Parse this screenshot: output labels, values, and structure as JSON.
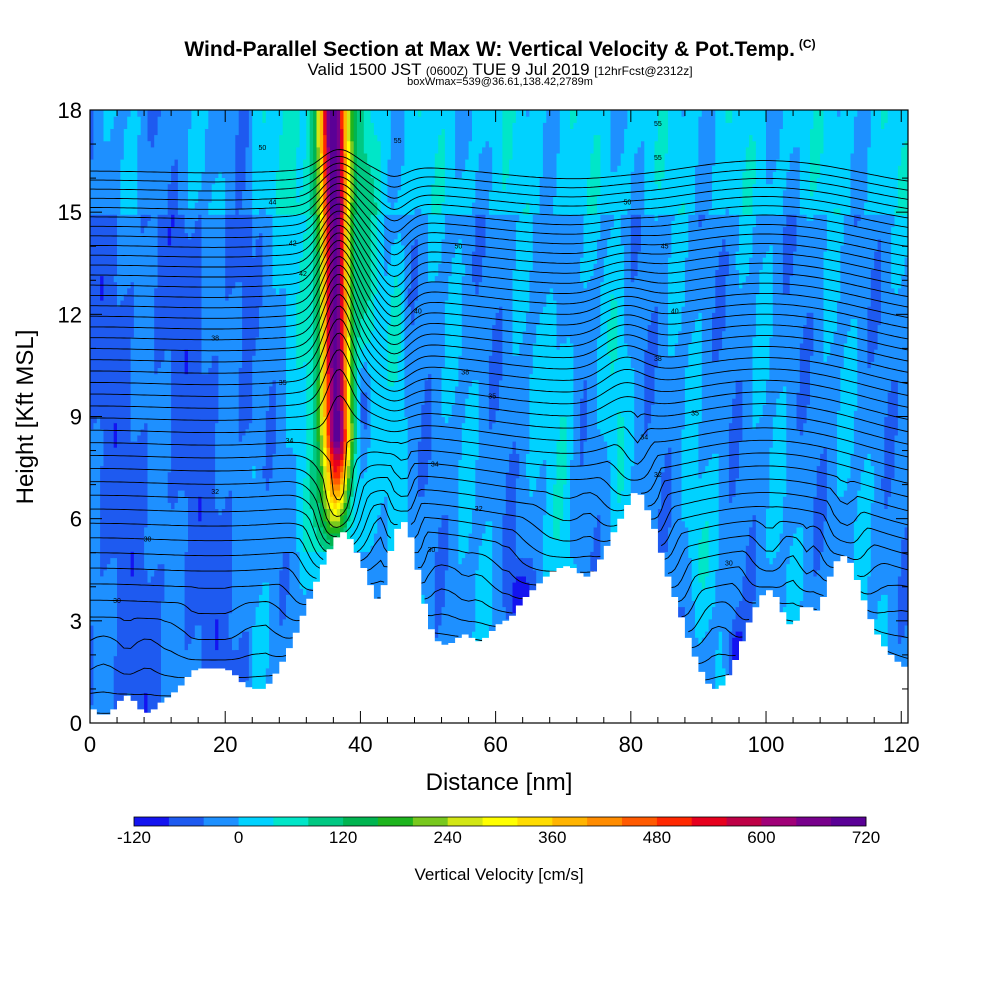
{
  "header": {
    "title": "Wind-Parallel Section at Max W: Vertical Velocity & Pot.Temp.",
    "copyright": "(C)",
    "valid_main": "Valid 1500 JST",
    "valid_utc": "(0600Z)",
    "valid_date": "TUE 9 Jul 2019",
    "forecast": "[12hrFcst@2312z]",
    "box_info": "boxWmax=539@36.61,138.42,2789m"
  },
  "chart_data": {
    "type": "heatmap",
    "xlabel": "Distance [nm]",
    "ylabel": "Height [Kft MSL]",
    "xlim": [
      0,
      121
    ],
    "ylim": [
      0,
      18
    ],
    "x_ticks": [
      0,
      20,
      40,
      60,
      80,
      100,
      120
    ],
    "y_ticks": [
      0,
      3,
      6,
      9,
      12,
      15,
      18
    ],
    "colorbar": {
      "label": "Vertical Velocity [cm/s]",
      "min": -120,
      "max": 720,
      "step": 40,
      "tick_labels": [
        "-120",
        "0",
        "120",
        "240",
        "360",
        "480",
        "600",
        "720"
      ],
      "colors": [
        "#1414f0",
        "#1e5af0",
        "#1e90ff",
        "#00d2ff",
        "#00e6c8",
        "#00c882",
        "#00b450",
        "#1eb41e",
        "#78c81e",
        "#d2e614",
        "#ffff00",
        "#ffdc00",
        "#ffb400",
        "#ff8c00",
        "#ff5a00",
        "#ff2800",
        "#e6001e",
        "#be0046",
        "#a00078",
        "#78008c",
        "#5a0096"
      ]
    },
    "terrain": [
      [
        0,
        0.5
      ],
      [
        1,
        0.3
      ],
      [
        2,
        0.2
      ],
      [
        3,
        0.3
      ],
      [
        4,
        0.5
      ],
      [
        5,
        0.8
      ],
      [
        6,
        0.8
      ],
      [
        7,
        0.5
      ],
      [
        8,
        0.3
      ],
      [
        9,
        0.3
      ],
      [
        10,
        0.5
      ],
      [
        11,
        0.7
      ],
      [
        12,
        0.8
      ],
      [
        13,
        1.0
      ],
      [
        14,
        1.2
      ],
      [
        15,
        1.5
      ],
      [
        16,
        1.6
      ],
      [
        17,
        1.6
      ],
      [
        18,
        1.6
      ],
      [
        19,
        1.6
      ],
      [
        20,
        1.6
      ],
      [
        21,
        1.5
      ],
      [
        22,
        1.3
      ],
      [
        23,
        1.1
      ],
      [
        24,
        1.0
      ],
      [
        25,
        1.0
      ],
      [
        26,
        1.0
      ],
      [
        27,
        1.3
      ],
      [
        28,
        1.6
      ],
      [
        29,
        2.0
      ],
      [
        30,
        2.4
      ],
      [
        31,
        2.9
      ],
      [
        32,
        3.4
      ],
      [
        33,
        3.9
      ],
      [
        34,
        4.4
      ],
      [
        35,
        4.9
      ],
      [
        36,
        5.3
      ],
      [
        37,
        5.6
      ],
      [
        38,
        5.6
      ],
      [
        39,
        5.2
      ],
      [
        40,
        4.8
      ],
      [
        41,
        4.3
      ],
      [
        42,
        3.8
      ],
      [
        43,
        3.5
      ],
      [
        44,
        4.6
      ],
      [
        45,
        5.5
      ],
      [
        46,
        5.9
      ],
      [
        47,
        5.9
      ],
      [
        48,
        5.0
      ],
      [
        49,
        4.0
      ],
      [
        50,
        3.0
      ],
      [
        51,
        2.5
      ],
      [
        52,
        2.3
      ],
      [
        53,
        2.3
      ],
      [
        54,
        2.4
      ],
      [
        55,
        2.6
      ],
      [
        56,
        2.6
      ],
      [
        57,
        2.4
      ],
      [
        58,
        2.4
      ],
      [
        59,
        2.6
      ],
      [
        60,
        2.8
      ],
      [
        61,
        3.0
      ],
      [
        62,
        3.0
      ],
      [
        63,
        3.3
      ],
      [
        64,
        3.6
      ],
      [
        65,
        3.8
      ],
      [
        66,
        4.0
      ],
      [
        67,
        4.2
      ],
      [
        68,
        4.4
      ],
      [
        69,
        4.5
      ],
      [
        70,
        4.6
      ],
      [
        71,
        4.6
      ],
      [
        72,
        4.5
      ],
      [
        73,
        4.3
      ],
      [
        74,
        4.3
      ],
      [
        75,
        4.6
      ],
      [
        76,
        5.0
      ],
      [
        77,
        5.4
      ],
      [
        78,
        5.8
      ],
      [
        79,
        6.2
      ],
      [
        80,
        6.6
      ],
      [
        81,
        6.9
      ],
      [
        82,
        6.5
      ],
      [
        83,
        6.0
      ],
      [
        84,
        5.4
      ],
      [
        85,
        4.6
      ],
      [
        86,
        4.0
      ],
      [
        87,
        3.4
      ],
      [
        88,
        2.8
      ],
      [
        89,
        2.2
      ],
      [
        90,
        1.7
      ],
      [
        91,
        1.3
      ],
      [
        92,
        1.0
      ],
      [
        93,
        1.0
      ],
      [
        94,
        1.2
      ],
      [
        95,
        1.6
      ],
      [
        96,
        2.1
      ],
      [
        97,
        2.7
      ],
      [
        98,
        3.2
      ],
      [
        99,
        3.6
      ],
      [
        100,
        3.9
      ],
      [
        101,
        3.9
      ],
      [
        102,
        3.5
      ],
      [
        103,
        3.0
      ],
      [
        104,
        2.8
      ],
      [
        105,
        3.2
      ],
      [
        106,
        3.6
      ],
      [
        107,
        3.2
      ],
      [
        108,
        3.4
      ],
      [
        109,
        4.0
      ],
      [
        110,
        4.6
      ],
      [
        111,
        4.9
      ],
      [
        112,
        4.9
      ],
      [
        113,
        4.5
      ],
      [
        114,
        3.9
      ],
      [
        115,
        3.3
      ],
      [
        116,
        2.8
      ],
      [
        117,
        2.4
      ],
      [
        118,
        2.1
      ],
      [
        119,
        1.9
      ],
      [
        120,
        1.7
      ],
      [
        121,
        1.6
      ]
    ],
    "isentropes": {
      "theta_min": 27,
      "theta_max": 71,
      "step": 1,
      "labels": [
        {
          "x": 4,
          "y": 3.6,
          "text": "30"
        },
        {
          "x": 8.5,
          "y": 5.4,
          "text": "30"
        },
        {
          "x": 18.5,
          "y": 6.8,
          "text": "32"
        },
        {
          "x": 18.5,
          "y": 11.3,
          "text": "38"
        },
        {
          "x": 28.5,
          "y": 10.0,
          "text": "35"
        },
        {
          "x": 29.5,
          "y": 8.3,
          "text": "34"
        },
        {
          "x": 30,
          "y": 14.1,
          "text": "42"
        },
        {
          "x": 31.5,
          "y": 13.2,
          "text": "42"
        },
        {
          "x": 25.5,
          "y": 16.9,
          "text": "50"
        },
        {
          "x": 27,
          "y": 15.3,
          "text": "44"
        },
        {
          "x": 45.5,
          "y": 17.1,
          "text": "55"
        },
        {
          "x": 48.5,
          "y": 12.1,
          "text": "40"
        },
        {
          "x": 54.5,
          "y": 14.0,
          "text": "50"
        },
        {
          "x": 55.5,
          "y": 10.3,
          "text": "38"
        },
        {
          "x": 59.5,
          "y": 9.6,
          "text": "35"
        },
        {
          "x": 51,
          "y": 7.6,
          "text": "34"
        },
        {
          "x": 57.5,
          "y": 6.3,
          "text": "32"
        },
        {
          "x": 50.5,
          "y": 5.1,
          "text": "30"
        },
        {
          "x": 79.5,
          "y": 15.3,
          "text": "50"
        },
        {
          "x": 84,
          "y": 17.6,
          "text": "55"
        },
        {
          "x": 84,
          "y": 16.6,
          "text": "55"
        },
        {
          "x": 85,
          "y": 14.0,
          "text": "45"
        },
        {
          "x": 86.5,
          "y": 12.1,
          "text": "40"
        },
        {
          "x": 84,
          "y": 10.7,
          "text": "38"
        },
        {
          "x": 89.5,
          "y": 9.1,
          "text": "35"
        },
        {
          "x": 82,
          "y": 8.4,
          "text": "34"
        },
        {
          "x": 84,
          "y": 7.3,
          "text": "32"
        },
        {
          "x": 94.5,
          "y": 4.7,
          "text": "30"
        }
      ]
    }
  }
}
